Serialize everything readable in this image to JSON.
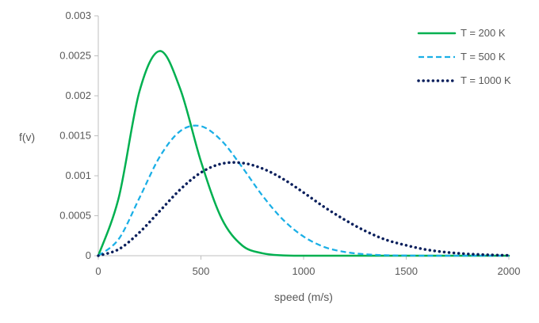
{
  "chart_data": {
    "type": "line",
    "title": "",
    "xlabel": "speed (m/s)",
    "ylabel": "f(v)",
    "xlim": [
      0,
      2000
    ],
    "ylim": [
      0,
      0.003
    ],
    "x_ticks": [
      "0",
      "500",
      "1000",
      "1500",
      "2000"
    ],
    "y_ticks": [
      "0",
      "0.0005",
      "0.001",
      "0.0015",
      "0.002",
      "0.0025",
      "0.003"
    ],
    "grid": false,
    "legend_position": "top-right",
    "x": [
      0,
      100,
      200,
      300,
      400,
      500,
      600,
      700,
      800,
      900,
      1000,
      1100,
      1200,
      1300,
      1400,
      1500,
      1600,
      1700,
      1800,
      1900,
      2000
    ],
    "series": [
      {
        "name": "T = 200 K",
        "color": "#00B050",
        "style": "solid",
        "values": [
          0,
          0.00073,
          0.00205,
          0.00256,
          0.00208,
          0.00118,
          0.00047,
          0.00013,
          3e-05,
          4e-06,
          0,
          0,
          0,
          0,
          0,
          0,
          0,
          0,
          0,
          0,
          0
        ]
      },
      {
        "name": "T = 500 K",
        "color": "#1AAFE6",
        "style": "dashed",
        "values": [
          0,
          0.00021,
          0.00072,
          0.00124,
          0.00156,
          0.00162,
          0.00144,
          0.00111,
          0.00075,
          0.00045,
          0.00024,
          0.00011,
          4.7e-05,
          1.8e-05,
          6e-06,
          2e-06,
          0,
          0,
          0,
          0,
          0
        ]
      },
      {
        "name": "T = 1000 K",
        "color": "#0A1F5C",
        "style": "dotted",
        "values": [
          0,
          8.1e-05,
          0.00029,
          0.00056,
          0.00083,
          0.00104,
          0.00115,
          0.00116,
          0.00109,
          0.00096,
          0.00079,
          0.00061,
          0.00045,
          0.00031,
          0.0002,
          0.00013,
          7.5e-05,
          4.2e-05,
          2.2e-05,
          1.1e-05,
          5e-06
        ]
      }
    ]
  }
}
